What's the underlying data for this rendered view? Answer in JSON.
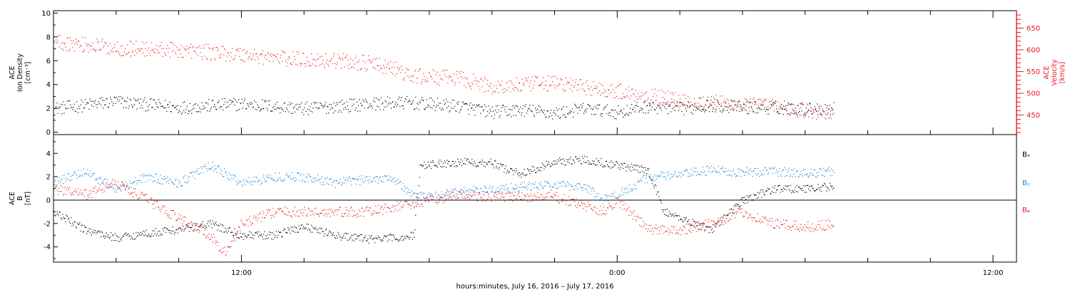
{
  "colors": {
    "black": "#000000",
    "red": "#e8191d",
    "blue": "#1a86d8"
  },
  "x_axis": {
    "title": "hours:minutes, July 16, 2016 – July 17, 2016",
    "range_hours": [
      -6,
      24.75
    ],
    "major_ticks": [
      {
        "hour": 0,
        "label": "12:00"
      },
      {
        "hour": 12,
        "label": "0:00"
      },
      {
        "hour": 24,
        "label": "12:00"
      }
    ],
    "minor_tick_step_hours": 2
  },
  "chart_data": [
    {
      "type": "scatter",
      "panel": "top",
      "title": "",
      "left_axis": {
        "label_lines": [
          "ACE",
          "Ion Density",
          "[cm⁻³]"
        ],
        "ylim": [
          -0.2,
          10.2
        ],
        "ticks": [
          0,
          2,
          4,
          6,
          8,
          10
        ],
        "color": "#000000"
      },
      "right_axis": {
        "label_lines": [
          "ACE",
          "Velocity",
          "[km/s]"
        ],
        "ylim": [
          405,
          690
        ],
        "ticks": [
          450,
          500,
          550,
          600,
          650
        ],
        "color": "#e8191d"
      },
      "series": [
        {
          "axis": "left",
          "color": "#000000",
          "noise": 0.55,
          "x": [
            -6,
            -4,
            -2,
            0,
            2,
            4,
            5.3,
            7,
            8,
            9,
            10,
            11,
            12,
            13,
            14,
            15,
            16,
            17,
            18,
            18.9
          ],
          "y": [
            2.0,
            2.6,
            2.1,
            2.4,
            2.0,
            2.4,
            2.5,
            2.2,
            1.7,
            1.9,
            1.6,
            2.0,
            1.7,
            2.2,
            2.0,
            2.3,
            2.1,
            2.1,
            2.0,
            2.0
          ]
        },
        {
          "axis": "right",
          "color": "#e8191d",
          "noise": 18,
          "x": [
            -6,
            -4,
            -2,
            0,
            1.5,
            3,
            4,
            5,
            5.3,
            7,
            8,
            9,
            10,
            11,
            12,
            13,
            14,
            15,
            16,
            17,
            18,
            18.9
          ],
          "y": [
            620,
            605,
            600,
            590,
            580,
            576,
            570,
            555,
            540,
            535,
            515,
            520,
            525,
            515,
            505,
            495,
            485,
            480,
            475,
            470,
            460,
            455
          ]
        }
      ]
    },
    {
      "type": "scatter",
      "panel": "bottom",
      "title": "",
      "left_axis": {
        "label_lines": [
          "ACE",
          "B",
          "[nT]"
        ],
        "ylim": [
          -5.3,
          5.6
        ],
        "ticks": [
          -4,
          -2,
          0,
          2,
          4
        ]
      },
      "zero_line": true,
      "legend": [
        "Bₓ",
        "Bᵧ",
        "Bᵩ"
      ],
      "series": [
        {
          "name": "Bₓ",
          "color": "#000000",
          "noise": 0.35,
          "x": [
            -6,
            -5,
            -4,
            -3,
            -2,
            -1,
            0,
            1,
            2,
            3,
            4,
            5,
            5.5,
            5.7,
            7,
            8,
            8.5,
            9,
            10,
            11,
            12,
            13,
            13.5,
            14,
            15,
            16,
            17,
            18,
            18.9
          ],
          "y": [
            -1.0,
            -2.5,
            -3.2,
            -2.8,
            -2.5,
            -2.0,
            -3.0,
            -3.0,
            -2.2,
            -3.0,
            -3.3,
            -3.2,
            -3.0,
            3.0,
            3.3,
            3.2,
            2.6,
            2.3,
            3.3,
            3.5,
            3.0,
            2.5,
            -1.0,
            -1.5,
            -2.5,
            0.0,
            1.0,
            1.0,
            1.2
          ]
        },
        {
          "name": "Bᵧ",
          "color": "#1a86d8",
          "noise": 0.4,
          "x": [
            -6,
            -5,
            -4,
            -3,
            -2,
            -1,
            0,
            1,
            2,
            3,
            4,
            4.8,
            5.5,
            6,
            7,
            8,
            9,
            10,
            11,
            11.5,
            12,
            13,
            14,
            15,
            16,
            17,
            18,
            18.9
          ],
          "y": [
            1.5,
            2.5,
            1.0,
            2.0,
            1.5,
            3.0,
            1.5,
            2.0,
            2.0,
            1.5,
            1.8,
            2.0,
            0.3,
            0.3,
            0.8,
            0.9,
            1.2,
            1.3,
            1.2,
            0.0,
            0.5,
            2.0,
            2.2,
            2.6,
            2.4,
            2.5,
            2.3,
            2.5
          ]
        },
        {
          "name": "Bᵩ",
          "color": "#e8191d",
          "noise": 0.45,
          "x": [
            -6,
            -5,
            -4,
            -3,
            -2,
            -1,
            -0.5,
            0,
            1,
            2,
            3,
            4,
            5,
            6,
            7,
            8,
            9,
            10,
            11,
            11.5,
            12,
            13,
            14,
            15,
            16,
            17,
            18,
            18.9
          ],
          "y": [
            1.0,
            0.5,
            1.5,
            0.0,
            -1.5,
            -3.0,
            -4.5,
            -2.0,
            -1.0,
            -1.0,
            -1.0,
            -1.0,
            -0.5,
            0.0,
            0.5,
            0.3,
            0.3,
            0.3,
            -0.5,
            -1.0,
            0.0,
            -2.5,
            -2.5,
            -2.0,
            -1.0,
            -2.0,
            -2.3,
            -2.0
          ]
        }
      ]
    }
  ]
}
